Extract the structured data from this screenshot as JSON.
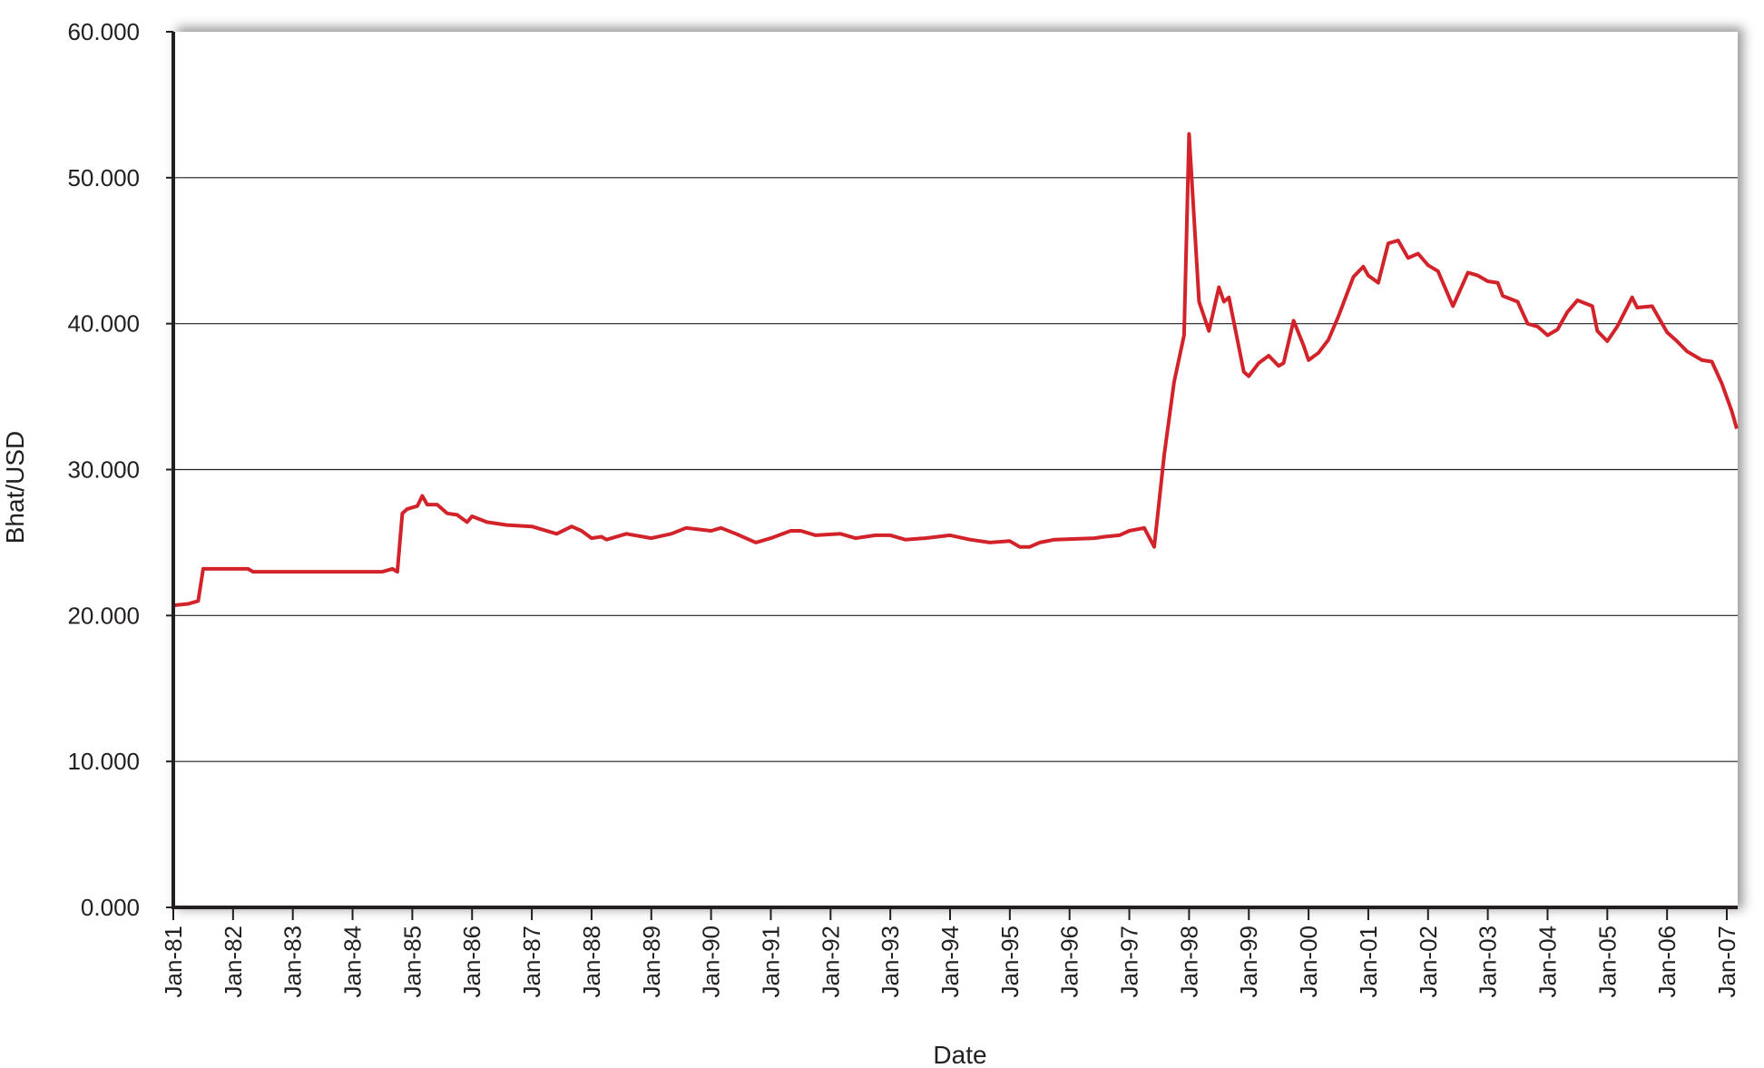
{
  "chart_data": {
    "type": "line",
    "title": "",
    "xlabel": "Date",
    "ylabel": "Bhat/USD",
    "ylim": [
      0,
      60
    ],
    "yticks": [
      "0.000",
      "10.000",
      "20.000",
      "30.000",
      "40.000",
      "50.000",
      "60.000"
    ],
    "xticks": [
      "Jan-81",
      "Jan-82",
      "Jan-83",
      "Jan-84",
      "Jan-85",
      "Jan-86",
      "Jan-87",
      "Jan-88",
      "Jan-89",
      "Jan-90",
      "Jan-91",
      "Jan-92",
      "Jan-93",
      "Jan-94",
      "Jan-95",
      "Jan-96",
      "Jan-97",
      "Jan-98",
      "Jan-99",
      "Jan-00",
      "Jan-01",
      "Jan-02",
      "Jan-03",
      "Jan-04",
      "Jan-05",
      "Jan-06",
      "Jan-07"
    ],
    "xrange": [
      "1981-01",
      "2007-03"
    ],
    "grid": "horizontal",
    "series_color": "#d2232a",
    "series": [
      {
        "points": [
          [
            "1981-01",
            20.7
          ],
          [
            "1981-04",
            20.8
          ],
          [
            "1981-06",
            21.0
          ],
          [
            "1981-07",
            23.2
          ],
          [
            "1982-04",
            23.2
          ],
          [
            "1982-05",
            23.0
          ],
          [
            "1984-07",
            23.0
          ],
          [
            "1984-09",
            23.2
          ],
          [
            "1984-10",
            23.0
          ],
          [
            "1984-11",
            27.0
          ],
          [
            "1984-12",
            27.3
          ],
          [
            "1985-02",
            27.5
          ],
          [
            "1985-03",
            28.2
          ],
          [
            "1985-04",
            27.6
          ],
          [
            "1985-06",
            27.6
          ],
          [
            "1985-08",
            27.0
          ],
          [
            "1985-10",
            26.9
          ],
          [
            "1985-12",
            26.4
          ],
          [
            "1986-01",
            26.8
          ],
          [
            "1986-04",
            26.4
          ],
          [
            "1986-08",
            26.2
          ],
          [
            "1987-01",
            26.1
          ],
          [
            "1987-06",
            25.6
          ],
          [
            "1987-09",
            26.1
          ],
          [
            "1987-11",
            25.8
          ],
          [
            "1988-01",
            25.3
          ],
          [
            "1988-03",
            25.4
          ],
          [
            "1988-04",
            25.2
          ],
          [
            "1988-08",
            25.6
          ],
          [
            "1989-01",
            25.3
          ],
          [
            "1989-05",
            25.6
          ],
          [
            "1989-08",
            26.0
          ],
          [
            "1990-01",
            25.8
          ],
          [
            "1990-03",
            26.0
          ],
          [
            "1990-06",
            25.6
          ],
          [
            "1990-10",
            25.0
          ],
          [
            "1991-01",
            25.3
          ],
          [
            "1991-05",
            25.8
          ],
          [
            "1991-07",
            25.8
          ],
          [
            "1991-10",
            25.5
          ],
          [
            "1992-03",
            25.6
          ],
          [
            "1992-06",
            25.3
          ],
          [
            "1992-10",
            25.5
          ],
          [
            "1993-01",
            25.5
          ],
          [
            "1993-04",
            25.2
          ],
          [
            "1993-08",
            25.3
          ],
          [
            "1994-01",
            25.5
          ],
          [
            "1994-05",
            25.2
          ],
          [
            "1994-09",
            25.0
          ],
          [
            "1995-01",
            25.1
          ],
          [
            "1995-03",
            24.7
          ],
          [
            "1995-05",
            24.7
          ],
          [
            "1995-07",
            25.0
          ],
          [
            "1995-10",
            25.2
          ],
          [
            "1996-06",
            25.3
          ],
          [
            "1996-08",
            25.4
          ],
          [
            "1996-11",
            25.5
          ],
          [
            "1997-01",
            25.8
          ],
          [
            "1997-04",
            26.0
          ],
          [
            "1997-06",
            24.7
          ],
          [
            "1997-08",
            31.0
          ],
          [
            "1997-10",
            36.0
          ],
          [
            "1997-12",
            39.2
          ],
          [
            "1998-01",
            53.0
          ],
          [
            "1998-03",
            41.5
          ],
          [
            "1998-05",
            39.5
          ],
          [
            "1998-07",
            42.5
          ],
          [
            "1998-08",
            41.5
          ],
          [
            "1998-09",
            41.8
          ],
          [
            "1998-12",
            36.7
          ],
          [
            "1999-01",
            36.4
          ],
          [
            "1999-03",
            37.3
          ],
          [
            "1999-05",
            37.8
          ],
          [
            "1999-07",
            37.1
          ],
          [
            "1999-08",
            37.3
          ],
          [
            "1999-10",
            40.2
          ],
          [
            "1999-12",
            38.5
          ],
          [
            "2000-01",
            37.5
          ],
          [
            "2000-03",
            38.0
          ],
          [
            "2000-05",
            38.9
          ],
          [
            "2000-07",
            40.5
          ],
          [
            "2000-10",
            43.2
          ],
          [
            "2000-12",
            43.9
          ],
          [
            "2001-01",
            43.3
          ],
          [
            "2001-03",
            42.8
          ],
          [
            "2001-05",
            45.5
          ],
          [
            "2001-07",
            45.7
          ],
          [
            "2001-09",
            44.5
          ],
          [
            "2001-11",
            44.8
          ],
          [
            "2002-01",
            44.0
          ],
          [
            "2002-03",
            43.6
          ],
          [
            "2002-06",
            41.2
          ],
          [
            "2002-09",
            43.5
          ],
          [
            "2002-11",
            43.3
          ],
          [
            "2003-01",
            42.9
          ],
          [
            "2003-03",
            42.8
          ],
          [
            "2003-04",
            41.9
          ],
          [
            "2003-07",
            41.5
          ],
          [
            "2003-09",
            40.0
          ],
          [
            "2003-11",
            39.8
          ],
          [
            "2004-01",
            39.2
          ],
          [
            "2004-03",
            39.6
          ],
          [
            "2004-05",
            40.8
          ],
          [
            "2004-07",
            41.6
          ],
          [
            "2004-10",
            41.2
          ],
          [
            "2004-11",
            39.5
          ],
          [
            "2005-01",
            38.8
          ],
          [
            "2005-03",
            39.8
          ],
          [
            "2005-06",
            41.8
          ],
          [
            "2005-07",
            41.1
          ],
          [
            "2005-10",
            41.2
          ],
          [
            "2006-01",
            39.4
          ],
          [
            "2006-03",
            38.8
          ],
          [
            "2006-05",
            38.1
          ],
          [
            "2006-08",
            37.5
          ],
          [
            "2006-10",
            37.4
          ],
          [
            "2006-12",
            35.9
          ],
          [
            "2007-02",
            34.0
          ],
          [
            "2007-03",
            32.8
          ]
        ]
      }
    ]
  }
}
